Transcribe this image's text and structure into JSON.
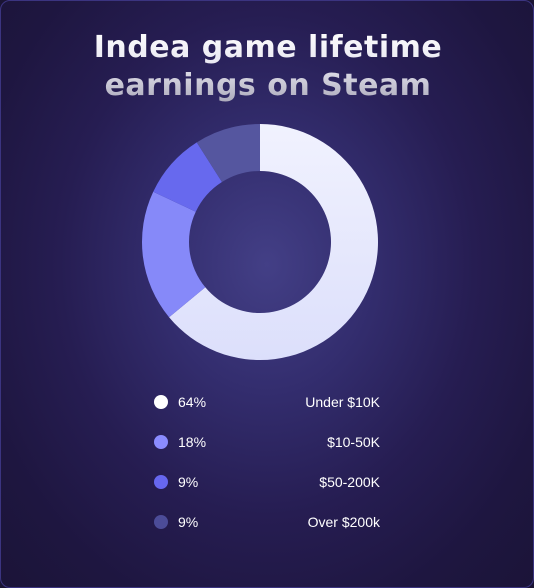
{
  "chart_data": {
    "type": "pie",
    "title_lines": [
      "Indea game lifetime",
      "earnings on Steam"
    ],
    "categories": [
      "Under $10K",
      "$10-50K",
      "$50-200K",
      "Over $200k"
    ],
    "values": [
      64,
      18,
      9,
      9
    ],
    "value_labels": [
      "64%",
      "18%",
      "9%",
      "9%"
    ],
    "colors": [
      "#ffffff",
      "#8b8cff",
      "#6767ef",
      "#4c4c98"
    ],
    "slice_colors": [
      "#e6e9fd",
      "#8689f9",
      "#6769ee",
      "#55569f"
    ],
    "legend": "bottom"
  }
}
